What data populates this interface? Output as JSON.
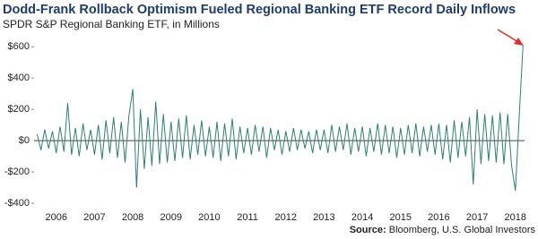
{
  "chart_data": {
    "type": "line",
    "title": "Dodd-Frank Rollback Optimism Fueled Regional Banking ETF Record Daily Inflows",
    "subtitle": "SPDR S&P Regional Banking ETF, in Millions",
    "source_label": "Source:",
    "source": "Bloomberg, U.S. Global Investors",
    "series": [
      {
        "color": "#2e7f76",
        "x": [
          2005.5,
          2005.6,
          2005.7,
          2005.8,
          2005.9,
          2006.0,
          2006.1,
          2006.2,
          2006.3,
          2006.4,
          2006.5,
          2006.6,
          2006.7,
          2006.8,
          2006.9,
          2007.0,
          2007.1,
          2007.2,
          2007.3,
          2007.4,
          2007.5,
          2007.6,
          2007.7,
          2007.8,
          2007.9,
          2008.0,
          2008.1,
          2008.2,
          2008.3,
          2008.4,
          2008.5,
          2008.6,
          2008.7,
          2008.8,
          2008.9,
          2009.0,
          2009.1,
          2009.2,
          2009.3,
          2009.4,
          2009.5,
          2009.6,
          2009.7,
          2009.8,
          2009.9,
          2010.0,
          2010.1,
          2010.2,
          2010.3,
          2010.4,
          2010.5,
          2010.6,
          2010.7,
          2010.8,
          2010.9,
          2011.0,
          2011.1,
          2011.2,
          2011.3,
          2011.4,
          2011.5,
          2011.6,
          2011.7,
          2011.8,
          2011.9,
          2012.0,
          2012.1,
          2012.2,
          2012.3,
          2012.4,
          2012.5,
          2012.6,
          2012.7,
          2012.8,
          2012.9,
          2013.0,
          2013.1,
          2013.2,
          2013.3,
          2013.4,
          2013.5,
          2013.6,
          2013.7,
          2013.8,
          2013.9,
          2014.0,
          2014.1,
          2014.2,
          2014.3,
          2014.4,
          2014.5,
          2014.6,
          2014.7,
          2014.8,
          2014.9,
          2015.0,
          2015.1,
          2015.2,
          2015.3,
          2015.4,
          2015.5,
          2015.6,
          2015.7,
          2015.8,
          2015.9,
          2016.0,
          2016.1,
          2016.2,
          2016.3,
          2016.4,
          2016.5,
          2016.6,
          2016.7,
          2016.8,
          2016.9,
          2017.0,
          2017.1,
          2017.2,
          2017.3,
          2017.4,
          2017.5,
          2017.6,
          2017.7,
          2017.8,
          2017.9,
          2018.0,
          2018.1,
          2018.2
        ],
        "values": [
          40,
          -60,
          70,
          -50,
          60,
          -80,
          90,
          -70,
          240,
          -90,
          80,
          -100,
          110,
          -60,
          70,
          -90,
          100,
          -120,
          130,
          -80,
          150,
          -110,
          120,
          -140,
          160,
          330,
          -300,
          200,
          -180,
          150,
          -160,
          250,
          -150,
          170,
          -140,
          120,
          -130,
          140,
          -110,
          160,
          -120,
          100,
          -90,
          130,
          -100,
          90,
          -110,
          120,
          -130,
          110,
          -100,
          140,
          -120,
          90,
          -80,
          80,
          -90,
          100,
          -70,
          90,
          -110,
          80,
          -60,
          70,
          -90,
          60,
          -70,
          80,
          -60,
          70,
          -50,
          60,
          -80,
          70,
          -60,
          70,
          -80,
          100,
          -70,
          90,
          -60,
          110,
          -90,
          80,
          -70,
          90,
          -100,
          80,
          -70,
          110,
          -90,
          100,
          -80,
          90,
          -110,
          80,
          -90,
          100,
          -80,
          110,
          -100,
          90,
          -70,
          100,
          -90,
          110,
          -120,
          100,
          -140,
          130,
          -110,
          120,
          -100,
          150,
          -280,
          200,
          -150,
          170,
          -130,
          160,
          -140,
          180,
          -150,
          170,
          -160,
          -320,
          150,
          610
        ]
      }
    ],
    "xlim": [
      2005.42,
      2018.24
    ],
    "xticks": [
      2006,
      2007,
      2008,
      2009,
      2010,
      2011,
      2012,
      2013,
      2014,
      2015,
      2016,
      2017,
      2018
    ],
    "ylim": [
      -457,
      670
    ],
    "yticks": [
      {
        "value": -400,
        "label": "-$400"
      },
      {
        "value": -200,
        "label": "-$200"
      },
      {
        "value": 0,
        "label": "$0"
      },
      {
        "value": 200,
        "label": "$200"
      },
      {
        "value": 400,
        "label": "$400"
      },
      {
        "value": 600,
        "label": "$600"
      }
    ],
    "grid": false
  }
}
